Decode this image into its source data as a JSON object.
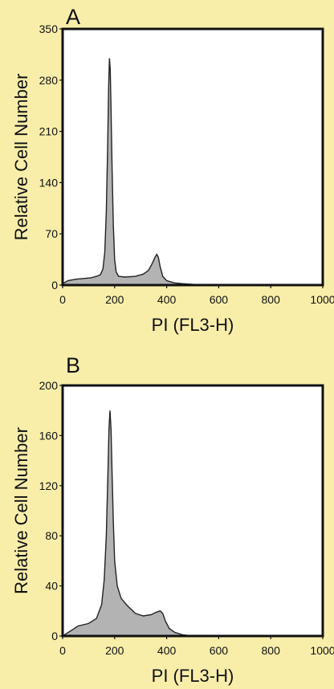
{
  "chart_data": [
    {
      "type": "area",
      "panel": "A",
      "xlabel": "PI (FL3-H)",
      "ylabel": "Relative Cell Number",
      "xlim": [
        0,
        1000
      ],
      "ylim": [
        0,
        350
      ],
      "xticks": [
        0,
        200,
        400,
        600,
        800,
        1000
      ],
      "yticks": [
        0,
        70,
        140,
        210,
        280,
        350
      ],
      "grid": false,
      "series": [
        {
          "fill_color": "#b3b3b3",
          "stroke_color": "#222222",
          "points": [
            [
              0,
              2
            ],
            [
              20,
              6
            ],
            [
              50,
              8
            ],
            [
              80,
              9
            ],
            [
              110,
              10
            ],
            [
              130,
              12
            ],
            [
              145,
              14
            ],
            [
              155,
              22
            ],
            [
              162,
              45
            ],
            [
              168,
              100
            ],
            [
              173,
              190
            ],
            [
              177,
              270
            ],
            [
              180,
              310
            ],
            [
              183,
              295
            ],
            [
              186,
              240
            ],
            [
              190,
              160
            ],
            [
              195,
              80
            ],
            [
              200,
              35
            ],
            [
              206,
              18
            ],
            [
              215,
              12
            ],
            [
              240,
              11
            ],
            [
              280,
              12
            ],
            [
              310,
              15
            ],
            [
              330,
              20
            ],
            [
              345,
              30
            ],
            [
              355,
              38
            ],
            [
              362,
              42
            ],
            [
              368,
              38
            ],
            [
              375,
              25
            ],
            [
              385,
              12
            ],
            [
              400,
              6
            ],
            [
              430,
              3
            ],
            [
              460,
              2
            ],
            [
              500,
              1
            ],
            [
              550,
              0
            ],
            [
              1000,
              0
            ]
          ]
        }
      ]
    },
    {
      "type": "area",
      "panel": "B",
      "xlabel": "PI (FL3-H)",
      "ylabel": "Relative Cell Number",
      "xlim": [
        0,
        1000
      ],
      "ylim": [
        0,
        200
      ],
      "xticks": [
        0,
        200,
        400,
        600,
        800,
        1000
      ],
      "yticks": [
        0,
        40,
        80,
        120,
        160,
        200
      ],
      "grid": false,
      "series": [
        {
          "fill_color": "#b3b3b3",
          "stroke_color": "#222222",
          "points": [
            [
              0,
              0
            ],
            [
              30,
              4
            ],
            [
              60,
              8
            ],
            [
              100,
              10
            ],
            [
              130,
              14
            ],
            [
              150,
              25
            ],
            [
              160,
              45
            ],
            [
              168,
              80
            ],
            [
              174,
              130
            ],
            [
              178,
              165
            ],
            [
              182,
              180
            ],
            [
              186,
              165
            ],
            [
              190,
              130
            ],
            [
              195,
              90
            ],
            [
              200,
              60
            ],
            [
              210,
              40
            ],
            [
              225,
              30
            ],
            [
              250,
              24
            ],
            [
              280,
              18
            ],
            [
              310,
              16
            ],
            [
              340,
              17
            ],
            [
              360,
              19
            ],
            [
              375,
              20
            ],
            [
              385,
              18
            ],
            [
              395,
              12
            ],
            [
              410,
              6
            ],
            [
              430,
              3
            ],
            [
              460,
              1
            ],
            [
              500,
              0
            ],
            [
              1000,
              0
            ]
          ]
        }
      ]
    }
  ]
}
